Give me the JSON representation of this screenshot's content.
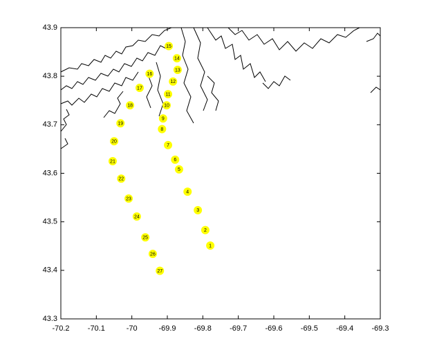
{
  "chart_data": {
    "type": "scatter",
    "xlim": [
      -70.2,
      -69.3
    ],
    "ylim": [
      43.3,
      43.9
    ],
    "xticks": [
      -70.2,
      -70.1,
      -70,
      -69.9,
      -69.8,
      -69.7,
      -69.6,
      -69.5,
      -69.4,
      -69.3
    ],
    "yticks": [
      43.3,
      43.4,
      43.5,
      43.6,
      43.7,
      43.8,
      43.9
    ],
    "color": "#ffff00",
    "labels": [
      "1",
      "2",
      "3",
      "4",
      "5",
      "6",
      "7",
      "8",
      "9",
      "10",
      "11",
      "12",
      "13",
      "14",
      "15",
      "16",
      "17",
      "18",
      "19",
      "20",
      "21",
      "22",
      "23",
      "24",
      "25",
      "26",
      "27"
    ],
    "x": [
      -69.779,
      -69.793,
      -69.814,
      -69.843,
      -69.867,
      -69.878,
      -69.898,
      -69.915,
      -69.912,
      -69.902,
      -69.898,
      -69.884,
      -69.871,
      -69.873,
      -69.896,
      -69.95,
      -69.978,
      -70.005,
      -70.032,
      -70.05,
      -70.054,
      -70.03,
      -70.009,
      -69.986,
      -69.962,
      -69.941,
      -69.921
    ],
    "y": [
      43.451,
      43.483,
      43.524,
      43.562,
      43.608,
      43.628,
      43.658,
      43.691,
      43.713,
      43.74,
      43.763,
      43.789,
      43.813,
      43.837,
      43.862,
      43.805,
      43.776,
      43.74,
      43.703,
      43.666,
      43.625,
      43.589,
      43.548,
      43.511,
      43.468,
      43.434,
      43.399
    ]
  }
}
